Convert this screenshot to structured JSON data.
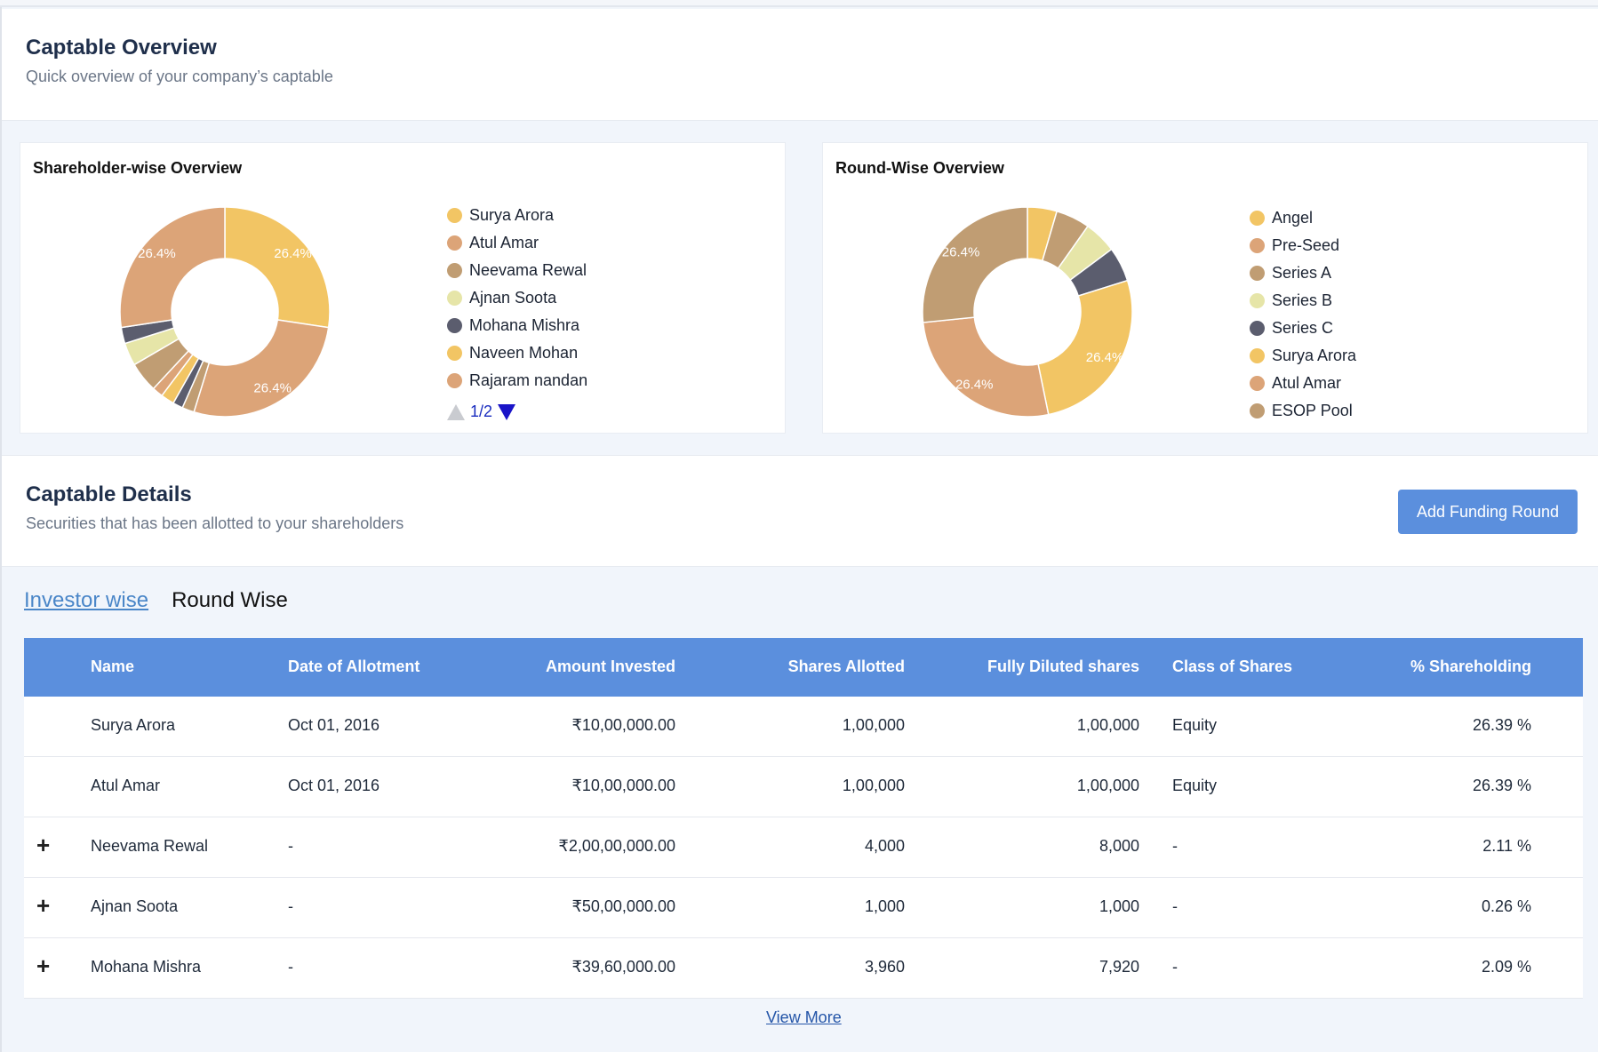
{
  "overview": {
    "title": "Captable Overview",
    "subtitle": "Quick overview of your company’s captable"
  },
  "shareholder_chart": {
    "title": "Shareholder-wise Overview",
    "legend": [
      {
        "label": "Surya Arora",
        "color": "#f2c564"
      },
      {
        "label": "Atul Amar",
        "color": "#dca478"
      },
      {
        "label": "Neevama Rewal",
        "color": "#c09d73"
      },
      {
        "label": "Ajnan Soota",
        "color": "#e6e5a8"
      },
      {
        "label": "Mohana Mishra",
        "color": "#5b5d6e"
      },
      {
        "label": "Naveen Mohan",
        "color": "#f2c564"
      },
      {
        "label": "Rajaram nandan",
        "color": "#dca478"
      }
    ],
    "pager": "1/2"
  },
  "round_chart": {
    "title": "Round-Wise Overview",
    "legend": [
      {
        "label": "Angel",
        "color": "#f2c564"
      },
      {
        "label": "Pre-Seed",
        "color": "#dca478"
      },
      {
        "label": "Series A",
        "color": "#c09d73"
      },
      {
        "label": "Series B",
        "color": "#e6e5a8"
      },
      {
        "label": "Series C",
        "color": "#5b5d6e"
      },
      {
        "label": "Surya Arora",
        "color": "#f2c564"
      },
      {
        "label": "Atul Amar",
        "color": "#dca478"
      },
      {
        "label": "ESOP Pool",
        "color": "#c09d73"
      }
    ]
  },
  "chart_data": [
    {
      "type": "pie",
      "title": "Shareholder-wise Overview",
      "slices": [
        {
          "value": 26.4,
          "color": "#f2c564",
          "label": "26.4%"
        },
        {
          "value": 26.4,
          "color": "#dca478",
          "label": "26.4%"
        },
        {
          "value": 1.8,
          "color": "#c09d73",
          "label": ""
        },
        {
          "value": 1.5,
          "color": "#5b5d6e",
          "label": ""
        },
        {
          "value": 2.0,
          "color": "#f2c564",
          "label": ""
        },
        {
          "value": 1.6,
          "color": "#dca478",
          "label": ""
        },
        {
          "value": 4.5,
          "color": "#c09d73",
          "label": ""
        },
        {
          "value": 3.4,
          "color": "#e6e5a8",
          "label": ""
        },
        {
          "value": 2.4,
          "color": "#5b5d6e",
          "label": ""
        },
        {
          "value": 26.4,
          "color": "#dca478",
          "label": "26.4%"
        }
      ]
    },
    {
      "type": "pie",
      "title": "Round-Wise Overview",
      "slices": [
        {
          "value": 4.5,
          "color": "#f2c564",
          "label": ""
        },
        {
          "value": 5.2,
          "color": "#c09d73",
          "label": ""
        },
        {
          "value": 5.0,
          "color": "#e6e5a8",
          "label": ""
        },
        {
          "value": 5.3,
          "color": "#5b5d6e",
          "label": ""
        },
        {
          "value": 26.4,
          "color": "#f2c564",
          "label": "26.4%"
        },
        {
          "value": 26.4,
          "color": "#dca478",
          "label": "26.4%"
        },
        {
          "value": 26.4,
          "color": "#c09d73",
          "label": "26.4%"
        }
      ]
    }
  ],
  "details": {
    "title": "Captable Details",
    "subtitle": "Securities that has been allotted to your shareholders",
    "add_button": "Add Funding Round"
  },
  "tabs": [
    {
      "label": "Investor wise"
    },
    {
      "label": "Round Wise"
    }
  ],
  "table": {
    "headers": {
      "name": "Name",
      "date": "Date of Allotment",
      "amount": "Amount Invested",
      "shares": "Shares Allotted",
      "diluted": "Fully Diluted shares",
      "class": "Class of Shares",
      "pct": "% Shareholding"
    },
    "rows": [
      {
        "expand": "",
        "name": "Surya Arora",
        "date": "Oct 01, 2016",
        "amount": "₹10,00,000.00",
        "shares": "1,00,000",
        "diluted": "1,00,000",
        "class": "Equity",
        "pct": "26.39 %"
      },
      {
        "expand": "",
        "name": "Atul Amar",
        "date": "Oct 01, 2016",
        "amount": "₹10,00,000.00",
        "shares": "1,00,000",
        "diluted": "1,00,000",
        "class": "Equity",
        "pct": "26.39 %"
      },
      {
        "expand": "+",
        "name": "Neevama Rewal",
        "date": "-",
        "amount": "₹2,00,00,000.00",
        "shares": "4,000",
        "diluted": "8,000",
        "class": "-",
        "pct": "2.11 %"
      },
      {
        "expand": "+",
        "name": "Ajnan Soota",
        "date": "-",
        "amount": "₹50,00,000.00",
        "shares": "1,000",
        "diluted": "1,000",
        "class": "-",
        "pct": "0.26 %"
      },
      {
        "expand": "+",
        "name": "Mohana Mishra",
        "date": "-",
        "amount": "₹39,60,000.00",
        "shares": "3,960",
        "diluted": "7,920",
        "class": "-",
        "pct": "2.09 %"
      }
    ]
  },
  "view_more": "View More"
}
